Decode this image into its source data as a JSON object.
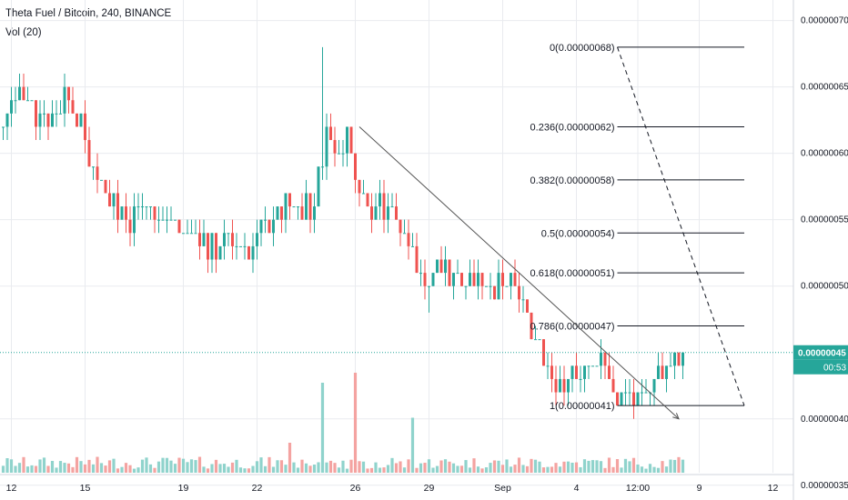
{
  "header": {
    "symbol_line": "Theta Fuel / Bitcoin, 240, BINANCE",
    "volume_line": "Vol (20)"
  },
  "colors": {
    "up": "#26a69a",
    "down": "#ef5350",
    "up_vol": "#8fd3cc",
    "down_vol": "#f4a3a1",
    "grid": "#e9ebef",
    "current_price": "#26a69a",
    "drawing": "#131722"
  },
  "chart_data": {
    "type": "candlestick",
    "ylim": [
      3.3e-07,
      7.1e-07
    ],
    "price_ticks": [
      "0.00000070",
      "0.00000065",
      "0.00000060",
      "0.00000055",
      "0.00000050",
      "0.00000040",
      "0.00000035"
    ],
    "price_tick_values": [
      7e-07,
      6.5e-07,
      6e-07,
      5.5e-07,
      5e-07,
      4e-07,
      3.5e-07
    ],
    "current_price": {
      "label": "0.00000045",
      "value": 4.5e-07,
      "countdown": "00:53"
    },
    "time_ticks": [
      {
        "label": "12",
        "bar": 2
      },
      {
        "label": "15",
        "bar": 20
      },
      {
        "label": "19",
        "bar": 44
      },
      {
        "label": "22",
        "bar": 62
      },
      {
        "label": "26",
        "bar": 86
      },
      {
        "label": "29",
        "bar": 104
      },
      {
        "label": "Sep",
        "bar": 122
      },
      {
        "label": "4",
        "bar": 140
      },
      {
        "label": "12:00",
        "bar": 155
      },
      {
        "label": "9",
        "bar": 170
      },
      {
        "label": "12",
        "bar": 188
      }
    ],
    "anchors": [
      [
        0,
        6.2e-07
      ],
      [
        3,
        6.4e-07
      ],
      [
        6,
        6.5e-07
      ],
      [
        8,
        6.3e-07
      ],
      [
        12,
        6.3e-07
      ],
      [
        16,
        6.4e-07
      ],
      [
        20,
        6.1e-07
      ],
      [
        23,
        5.8e-07
      ],
      [
        26,
        5.7e-07
      ],
      [
        30,
        5.5e-07
      ],
      [
        35,
        5.6e-07
      ],
      [
        40,
        5.5e-07
      ],
      [
        45,
        5.4e-07
      ],
      [
        50,
        5.3e-07
      ],
      [
        55,
        5.3e-07
      ],
      [
        60,
        5.3e-07
      ],
      [
        65,
        5.5e-07
      ],
      [
        70,
        5.6e-07
      ],
      [
        75,
        5.6e-07
      ],
      [
        77,
        5.8e-07
      ],
      [
        79,
        6.2e-07
      ],
      [
        81,
        6e-07
      ],
      [
        84,
        6.1e-07
      ],
      [
        86,
        5.8e-07
      ],
      [
        90,
        5.6e-07
      ],
      [
        94,
        5.6e-07
      ],
      [
        98,
        5.4e-07
      ],
      [
        100,
        5.3e-07
      ],
      [
        103,
        5e-07
      ],
      [
        106,
        5.1e-07
      ],
      [
        110,
        5.1e-07
      ],
      [
        115,
        5.1e-07
      ],
      [
        120,
        5e-07
      ],
      [
        125,
        5e-07
      ],
      [
        128,
        4.7e-07
      ],
      [
        132,
        4.5e-07
      ],
      [
        135,
        4.3e-07
      ],
      [
        140,
        4.3e-07
      ],
      [
        145,
        4.4e-07
      ],
      [
        150,
        4.2e-07
      ],
      [
        155,
        4.2e-07
      ],
      [
        160,
        4.3e-07
      ],
      [
        163,
        4.4e-07
      ],
      [
        166,
        4.5e-07
      ]
    ],
    "spikes": [
      {
        "bar": 78,
        "high": 6.8e-07
      },
      {
        "bar": 104,
        "low": 4.8e-07
      }
    ],
    "volume_spikes": [
      {
        "bar": 78,
        "value": 0.9
      },
      {
        "bar": 86,
        "value": 1.0
      },
      {
        "bar": 100,
        "value": 0.55
      },
      {
        "bar": 70,
        "value": 0.3
      }
    ],
    "fib_levels": [
      {
        "ratio_label": "0(0.00000068)",
        "value": 6.8e-07
      },
      {
        "ratio_label": "0.236(0.00000062)",
        "value": 6.2e-07
      },
      {
        "ratio_label": "0.382(0.00000058)",
        "value": 5.8e-07
      },
      {
        "ratio_label": "0.5(0.00000054)",
        "value": 5.4e-07
      },
      {
        "ratio_label": "0.618(0.00000051)",
        "value": 5.1e-07
      },
      {
        "ratio_label": "0.786(0.00000047)",
        "value": 4.7e-07
      },
      {
        "ratio_label": "1(0.00000041)",
        "value": 4.1e-07
      }
    ],
    "fib_bars": [
      150,
      181
    ],
    "trend_line": {
      "from": [
        87,
        6.2e-07
      ],
      "to": [
        165,
        4e-07
      ]
    },
    "dashed_line": {
      "from": [
        150,
        6.8e-07
      ],
      "to": [
        181,
        4.1e-07
      ]
    }
  }
}
